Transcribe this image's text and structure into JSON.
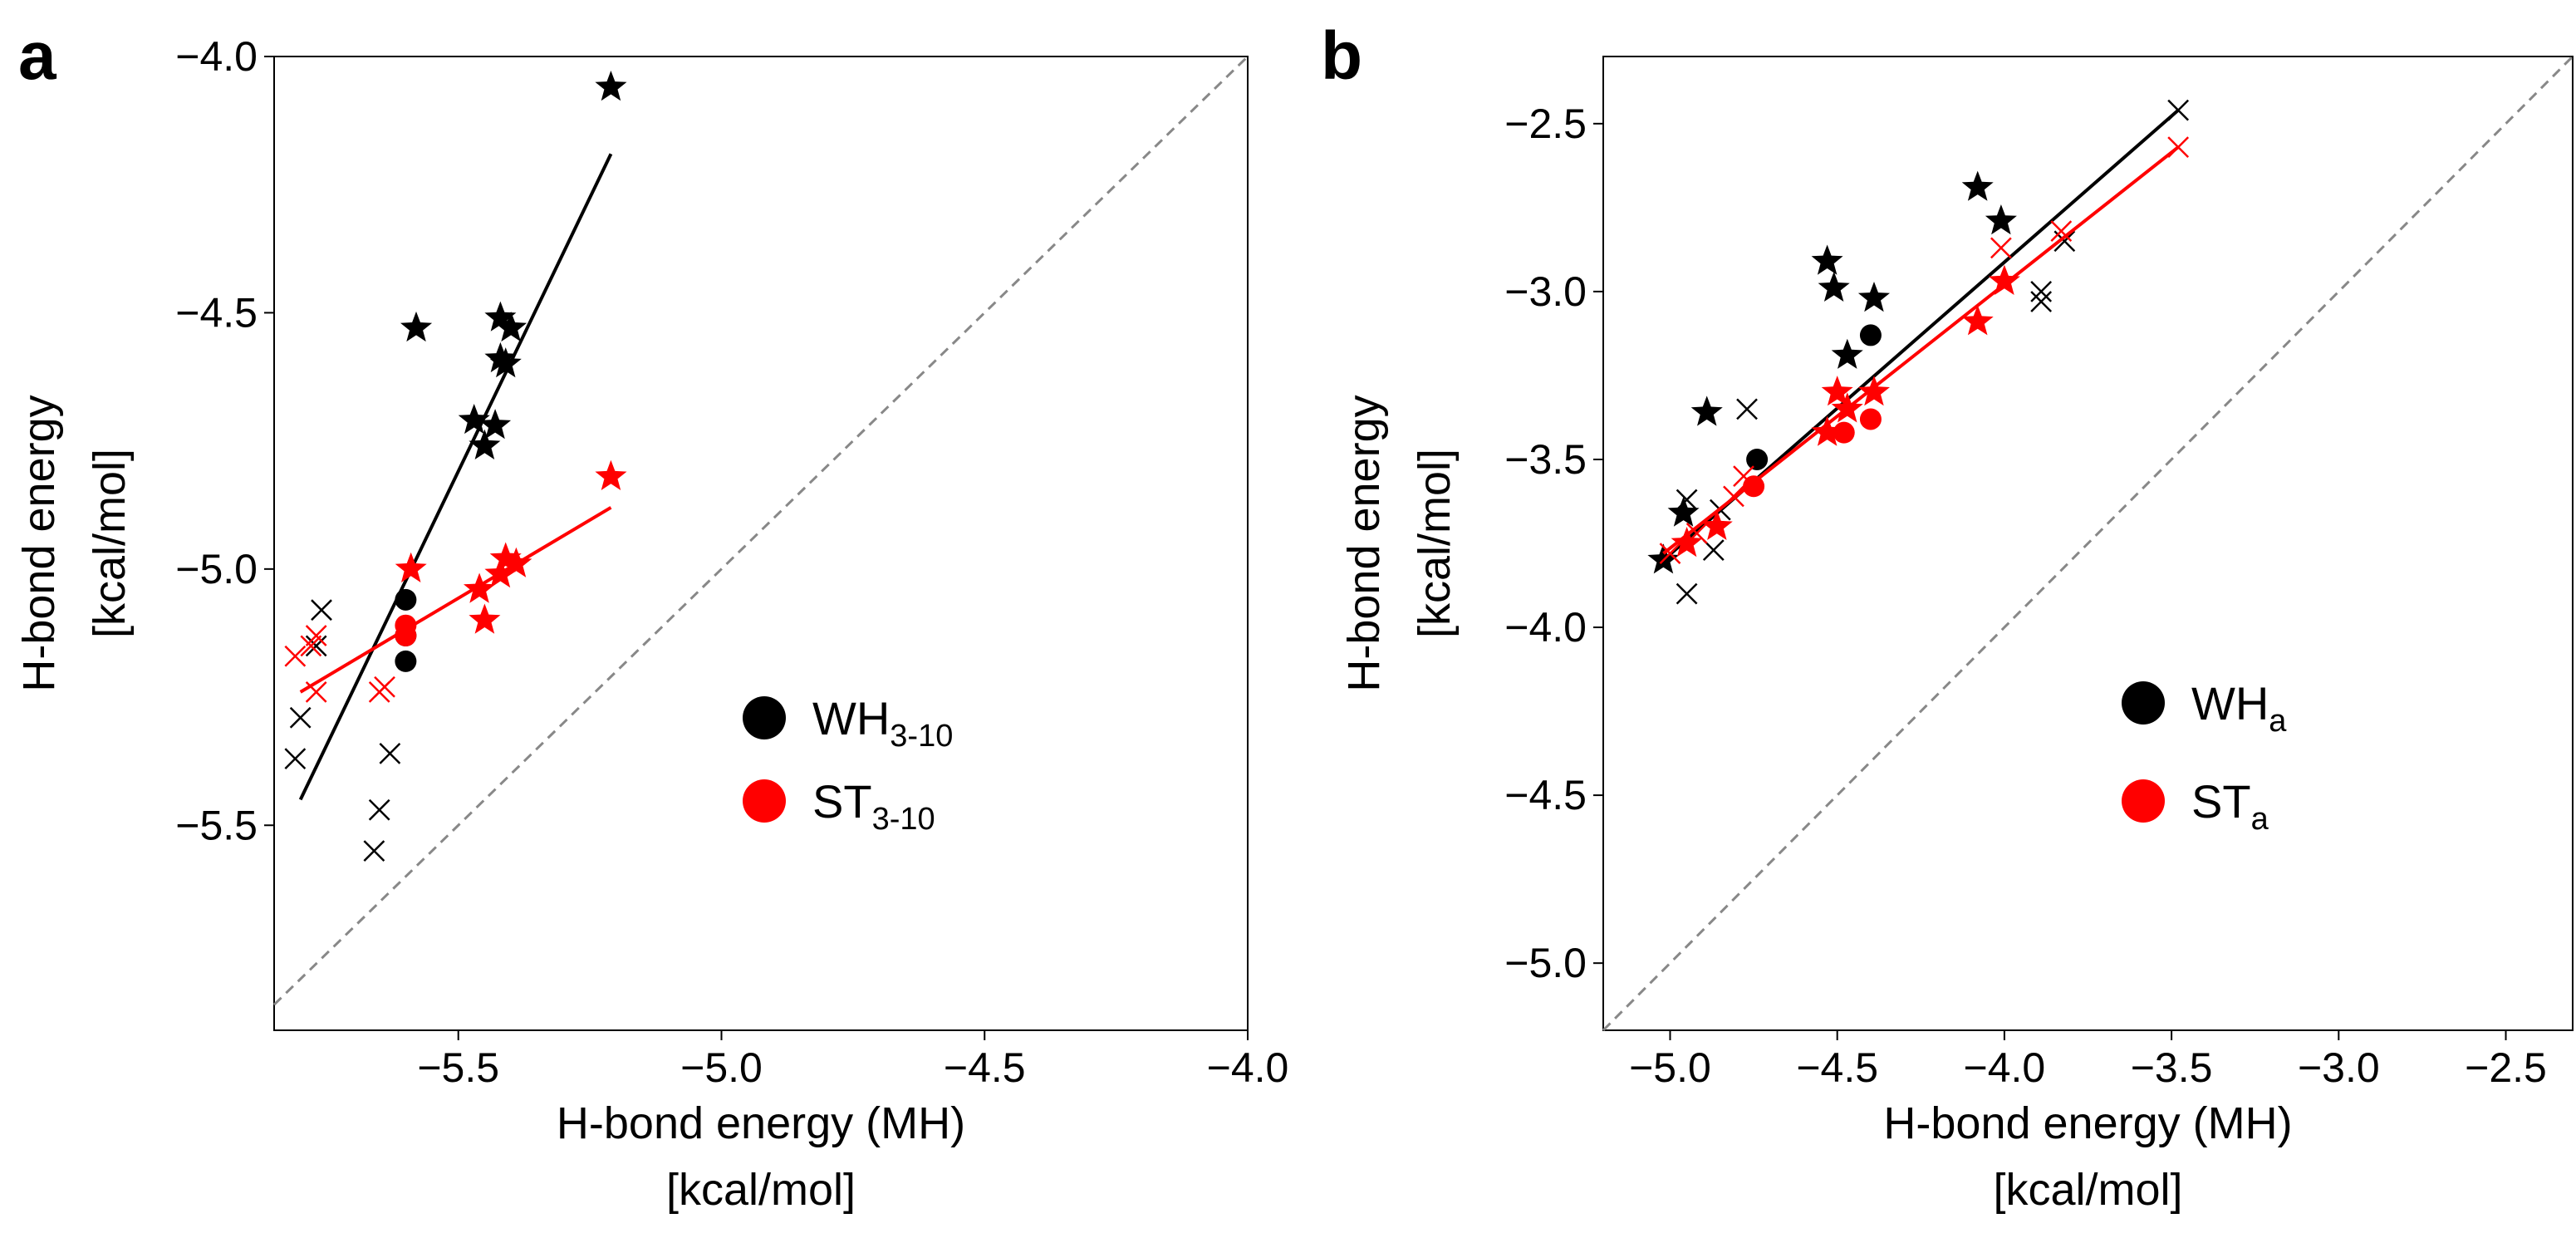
{
  "chart_data": [
    {
      "panel_label": "a",
      "type": "scatter",
      "xlim": [
        -5.85,
        -4.0
      ],
      "ylim": [
        -5.9,
        -4.0
      ],
      "xticks": [
        -5.5,
        -5.0,
        -4.5,
        -4.0
      ],
      "yticks": [
        -4.0,
        -4.5,
        -5.0,
        -5.5
      ],
      "xtick_labels": [
        "−5.5",
        "−5.0",
        "−4.5",
        "−4.0"
      ],
      "ytick_labels": [
        "−4.0",
        "−4.5",
        "−5.0",
        "−5.5"
      ],
      "xlabel": [
        "H-bond energy (MH)",
        "[kcal/mol]"
      ],
      "ylabel": [
        "H-bond energy",
        "[kcal/mol]"
      ],
      "diagonal": "y = x (dashed gray)",
      "legend": {
        "position": "center-right",
        "entries": [
          {
            "main": "WH",
            "sub": "3-10",
            "color": "#000000"
          },
          {
            "main": "ST",
            "sub": "3-10",
            "color": "#ff0000"
          }
        ]
      },
      "series": [
        {
          "name": "WH3-10",
          "color": "#000000",
          "fit_line": [
            [
              -5.8,
              -5.45
            ],
            [
              -5.21,
              -4.19
            ]
          ],
          "stars": [
            [
              -5.21,
              -4.06
            ],
            [
              -5.58,
              -4.53
            ],
            [
              -5.42,
              -4.51
            ],
            [
              -5.4,
              -4.53
            ],
            [
              -5.42,
              -4.59
            ],
            [
              -5.41,
              -4.6
            ],
            [
              -5.47,
              -4.71
            ],
            [
              -5.43,
              -4.72
            ],
            [
              -5.45,
              -4.76
            ]
          ],
          "circles": [
            [
              -5.6,
              -5.06
            ],
            [
              -5.6,
              -5.13
            ],
            [
              -5.6,
              -5.18
            ]
          ],
          "crosses": [
            [
              -5.76,
              -5.08
            ],
            [
              -5.77,
              -5.15
            ],
            [
              -5.8,
              -5.29
            ],
            [
              -5.81,
              -5.37
            ],
            [
              -5.63,
              -5.36
            ],
            [
              -5.65,
              -5.47
            ],
            [
              -5.66,
              -5.55
            ]
          ]
        },
        {
          "name": "ST3-10",
          "color": "#ff0000",
          "fit_line": [
            [
              -5.8,
              -5.24
            ],
            [
              -5.21,
              -4.88
            ]
          ],
          "stars": [
            [
              -5.21,
              -4.82
            ],
            [
              -5.59,
              -5.0
            ],
            [
              -5.41,
              -4.98
            ],
            [
              -5.39,
              -4.99
            ],
            [
              -5.42,
              -5.01
            ],
            [
              -5.46,
              -5.04
            ],
            [
              -5.45,
              -5.1
            ]
          ],
          "circles": [
            [
              -5.6,
              -5.11
            ],
            [
              -5.6,
              -5.13
            ]
          ],
          "crosses": [
            [
              -5.81,
              -5.17
            ],
            [
              -5.77,
              -5.13
            ],
            [
              -5.78,
              -5.15
            ],
            [
              -5.77,
              -5.24
            ],
            [
              -5.65,
              -5.24
            ],
            [
              -5.64,
              -5.23
            ]
          ]
        }
      ]
    },
    {
      "panel_label": "b",
      "type": "scatter",
      "xlim": [
        -5.2,
        -2.3
      ],
      "ylim": [
        -5.2,
        -2.3
      ],
      "xticks": [
        -5.0,
        -4.5,
        -4.0,
        -3.5,
        -3.0,
        -2.5
      ],
      "yticks": [
        -2.5,
        -3.0,
        -3.5,
        -4.0,
        -4.5,
        -5.0
      ],
      "xtick_labels": [
        "−5.0",
        "−4.5",
        "−4.0",
        "−3.5",
        "−3.0",
        "−2.5"
      ],
      "ytick_labels": [
        "−2.5",
        "−3.0",
        "−3.5",
        "−4.0",
        "−4.5",
        "−5.0"
      ],
      "xlabel": [
        "H-bond energy (MH)",
        "[kcal/mol]"
      ],
      "ylabel": [
        "H-bond energy",
        "[kcal/mol]"
      ],
      "diagonal": "y = x (dashed gray)",
      "legend": {
        "position": "center-right",
        "entries": [
          {
            "main": "WH",
            "sub": "a",
            "color": "#000000"
          },
          {
            "main": "ST",
            "sub": "a",
            "color": "#ff0000"
          }
        ]
      },
      "series": [
        {
          "name": "WHa",
          "color": "#000000",
          "fit_line": [
            [
              -5.02,
              -3.8
            ],
            [
              -3.48,
              -2.46
            ]
          ],
          "stars": [
            [
              -4.08,
              -2.69
            ],
            [
              -4.01,
              -2.79
            ],
            [
              -4.53,
              -2.91
            ],
            [
              -4.51,
              -2.99
            ],
            [
              -4.39,
              -3.02
            ],
            [
              -4.47,
              -3.19
            ],
            [
              -4.89,
              -3.36
            ],
            [
              -4.96,
              -3.66
            ],
            [
              -5.02,
              -3.8
            ]
          ],
          "circles": [
            [
              -4.4,
              -3.13
            ],
            [
              -4.74,
              -3.5
            ]
          ],
          "crosses": [
            [
              -3.48,
              -2.46
            ],
            [
              -3.82,
              -2.85
            ],
            [
              -3.89,
              -3.0
            ],
            [
              -3.89,
              -3.03
            ],
            [
              -4.77,
              -3.35
            ],
            [
              -4.95,
              -3.62
            ],
            [
              -4.85,
              -3.65
            ],
            [
              -4.87,
              -3.77
            ],
            [
              -4.95,
              -3.9
            ]
          ]
        },
        {
          "name": "STa",
          "color": "#ff0000",
          "fit_line": [
            [
              -5.02,
              -3.78
            ],
            [
              -3.48,
              -2.57
            ]
          ],
          "stars": [
            [
              -4.5,
              -3.3
            ],
            [
              -4.39,
              -3.3
            ],
            [
              -4.47,
              -3.35
            ],
            [
              -4.53,
              -3.42
            ],
            [
              -4.08,
              -3.09
            ],
            [
              -4.0,
              -2.97
            ],
            [
              -4.86,
              -3.7
            ],
            [
              -4.95,
              -3.75
            ]
          ],
          "circles": [
            [
              -4.48,
              -3.42
            ],
            [
              -4.4,
              -3.38
            ],
            [
              -4.75,
              -3.58
            ]
          ],
          "crosses": [
            [
              -3.48,
              -2.57
            ],
            [
              -3.83,
              -2.82
            ],
            [
              -4.01,
              -2.87
            ],
            [
              -4.78,
              -3.55
            ],
            [
              -4.81,
              -3.61
            ],
            [
              -4.92,
              -3.72
            ],
            [
              -5.0,
              -3.78
            ]
          ]
        }
      ]
    }
  ]
}
